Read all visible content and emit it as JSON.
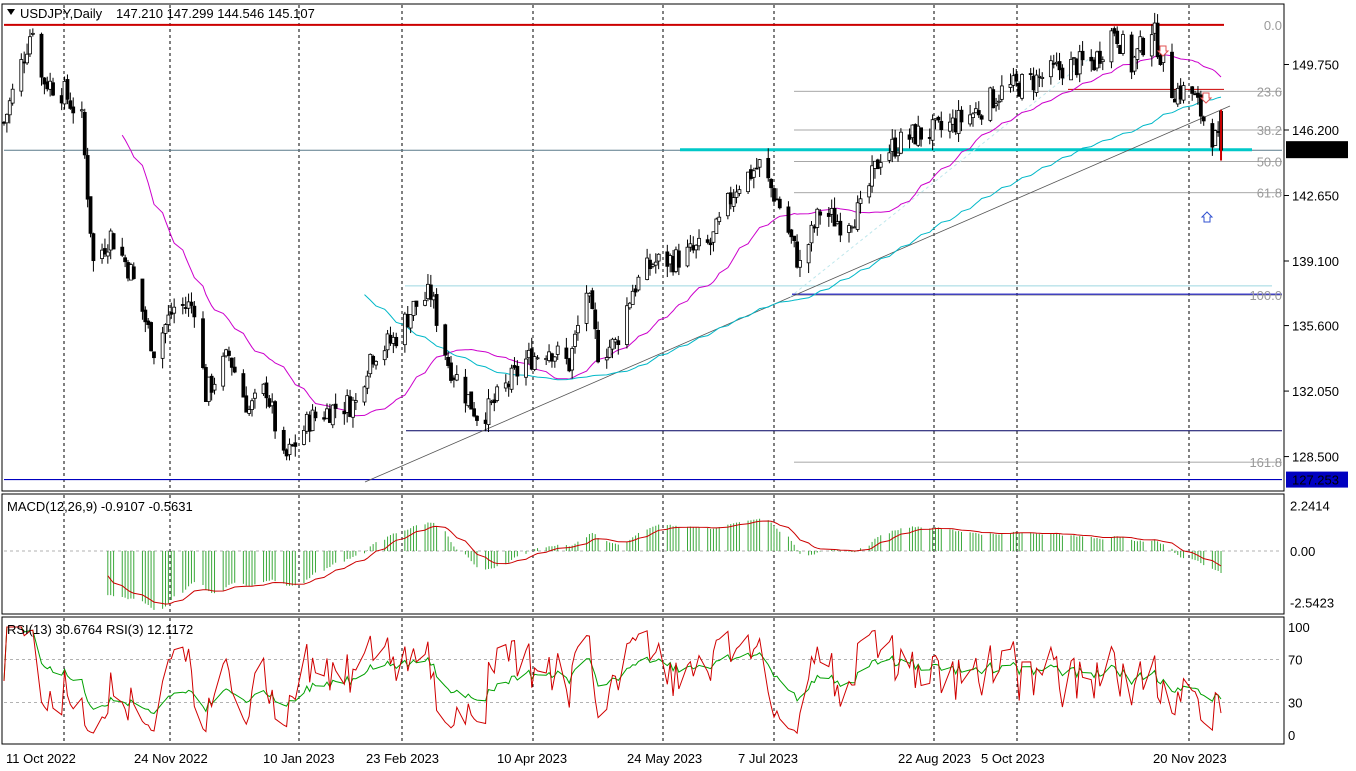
{
  "main_header": {
    "symbol": "USDJPY,Daily",
    "ohlc": "147.210 147.299 144.546 145.107"
  },
  "macd_header": "MACD(12,26,9) -0.9107 -0.5631",
  "rsi_header": "RSI(13) 30.6764  RSI(3) 12.1172",
  "price_axis": {
    "ticks": [
      "149.750",
      "146.200",
      "142.650",
      "139.100",
      "135.600",
      "132.050",
      "128.500"
    ],
    "current_price": "145.107",
    "low_marker": "127.253"
  },
  "fib_labels": [
    "0.0",
    "23.6",
    "38.2",
    "50.0",
    "61.8",
    "100.0",
    "161.8"
  ],
  "macd_axis": [
    "2.2414",
    "0.00",
    "-2.5423"
  ],
  "rsi_axis": [
    "100",
    "70",
    "30",
    "0"
  ],
  "dates": [
    "11 Oct 2022",
    "24 Nov 2022",
    "10 Jan 2023",
    "23 Feb 2023",
    "10 Apr 2023",
    "24 May 2023",
    "7 Jul 2023",
    "22 Aug 2023",
    "5 Oct 2023",
    "20 Nov 2023"
  ],
  "colors": {
    "candle": "#000000",
    "ma_fast": "#cc00cc",
    "ma_slow": "#00b8c8",
    "macd_hist": "#3aa83a",
    "macd_signal": "#cc0000",
    "rsi13": "#00a000",
    "rsi3": "#d00000",
    "resistance": "#cc0000",
    "support_cyan": "#00c8c8",
    "support_blue": "#0000c0",
    "price_box": "#000000",
    "low_box": "#0000c0"
  },
  "chart_data": {
    "type": "candlestick",
    "symbol": "USDJPY",
    "timeframe": "Daily",
    "last_bar": {
      "open": 147.21,
      "high": 147.299,
      "low": 144.546,
      "close": 145.107
    },
    "close_anchors": [
      [
        "11 Oct 2022",
        146.6
      ],
      [
        "21 Oct 2022",
        151.9
      ],
      [
        "24 Oct 2022",
        149.0
      ],
      [
        "1 Nov 2022",
        148.2
      ],
      [
        "7 Nov 2022",
        146.7
      ],
      [
        "11 Nov 2022",
        139.0
      ],
      [
        "17 Nov 2022",
        140.5
      ],
      [
        "24 Nov 2022",
        138.5
      ],
      [
        "2 Dec 2022",
        134.3
      ],
      [
        "9 Dec 2022",
        136.6
      ],
      [
        "16 Dec 2022",
        136.7
      ],
      [
        "20 Dec 2022",
        131.9
      ],
      [
        "28 Dec 2022",
        134.0
      ],
      [
        "4 Jan 2023",
        131.0
      ],
      [
        "10 Jan 2023",
        132.2
      ],
      [
        "16 Jan 2023",
        128.2
      ],
      [
        "25 Jan 2023",
        130.5
      ],
      [
        "3 Feb 2023",
        131.2
      ],
      [
        "10 Feb 2023",
        131.4
      ],
      [
        "15 Feb 2023",
        134.0
      ],
      [
        "23 Feb 2023",
        134.8
      ],
      [
        "2 Mar 2023",
        136.6
      ],
      [
        "8 Mar 2023",
        137.3
      ],
      [
        "14 Mar 2023",
        133.6
      ],
      [
        "24 Mar 2023",
        130.8
      ],
      [
        "28 Mar 2023",
        131.0
      ],
      [
        "10 Apr 2023",
        133.7
      ],
      [
        "18 Apr 2023",
        134.4
      ],
      [
        "25 Apr 2023",
        133.5
      ],
      [
        "1 May 2023",
        137.5
      ],
      [
        "5 May 2023",
        134.2
      ],
      [
        "11 May 2023",
        134.6
      ],
      [
        "17 May 2023",
        137.6
      ],
      [
        "24 May 2023",
        139.0
      ],
      [
        "1 Jun 2023",
        139.2
      ],
      [
        "13 Jun 2023",
        140.0
      ],
      [
        "22 Jun 2023",
        143.2
      ],
      [
        "30 Jun 2023",
        144.3
      ],
      [
        "7 Jul 2023",
        142.1
      ],
      [
        "14 Jul 2023",
        138.8
      ],
      [
        "21 Jul 2023",
        141.8
      ],
      [
        "28 Jul 2023",
        141.2
      ],
      [
        "4 Aug 2023",
        141.8
      ],
      [
        "11 Aug 2023",
        144.9
      ],
      [
        "22 Aug 2023",
        145.9
      ],
      [
        "1 Sep 2023",
        146.2
      ],
      [
        "12 Sep 2023",
        147.1
      ],
      [
        "22 Sep 2023",
        148.3
      ],
      [
        "5 Oct 2023",
        149.0
      ],
      [
        "13 Oct 2023",
        149.6
      ],
      [
        "24 Oct 2023",
        149.9
      ],
      [
        "31 Oct 2023",
        151.7
      ],
      [
        "6 Nov 2023",
        149.7
      ],
      [
        "13 Nov 2023",
        151.8
      ],
      [
        "20 Nov 2023",
        148.4
      ],
      [
        "27 Nov 2023",
        148.2
      ],
      [
        "1 Dec 2023",
        146.8
      ],
      [
        "7 Dec 2023",
        145.1
      ]
    ],
    "levels": {
      "resistance_high": 151.9,
      "fib_0": 151.9,
      "fib_23_6": 148.3,
      "fib_38_2": 146.2,
      "fib_50": 144.5,
      "fib_61_8": 142.8,
      "fib_100": 137.25,
      "fib_161_8": 128.2,
      "support_50_line": 145.1,
      "support_100_line": 137.3,
      "support_low": 127.253,
      "level_130": 129.9
    },
    "indicators": [
      "MA fast (magenta)",
      "MA slow (cyan)",
      "MACD(12,26,9)",
      "RSI(13)",
      "RSI(3)"
    ]
  }
}
